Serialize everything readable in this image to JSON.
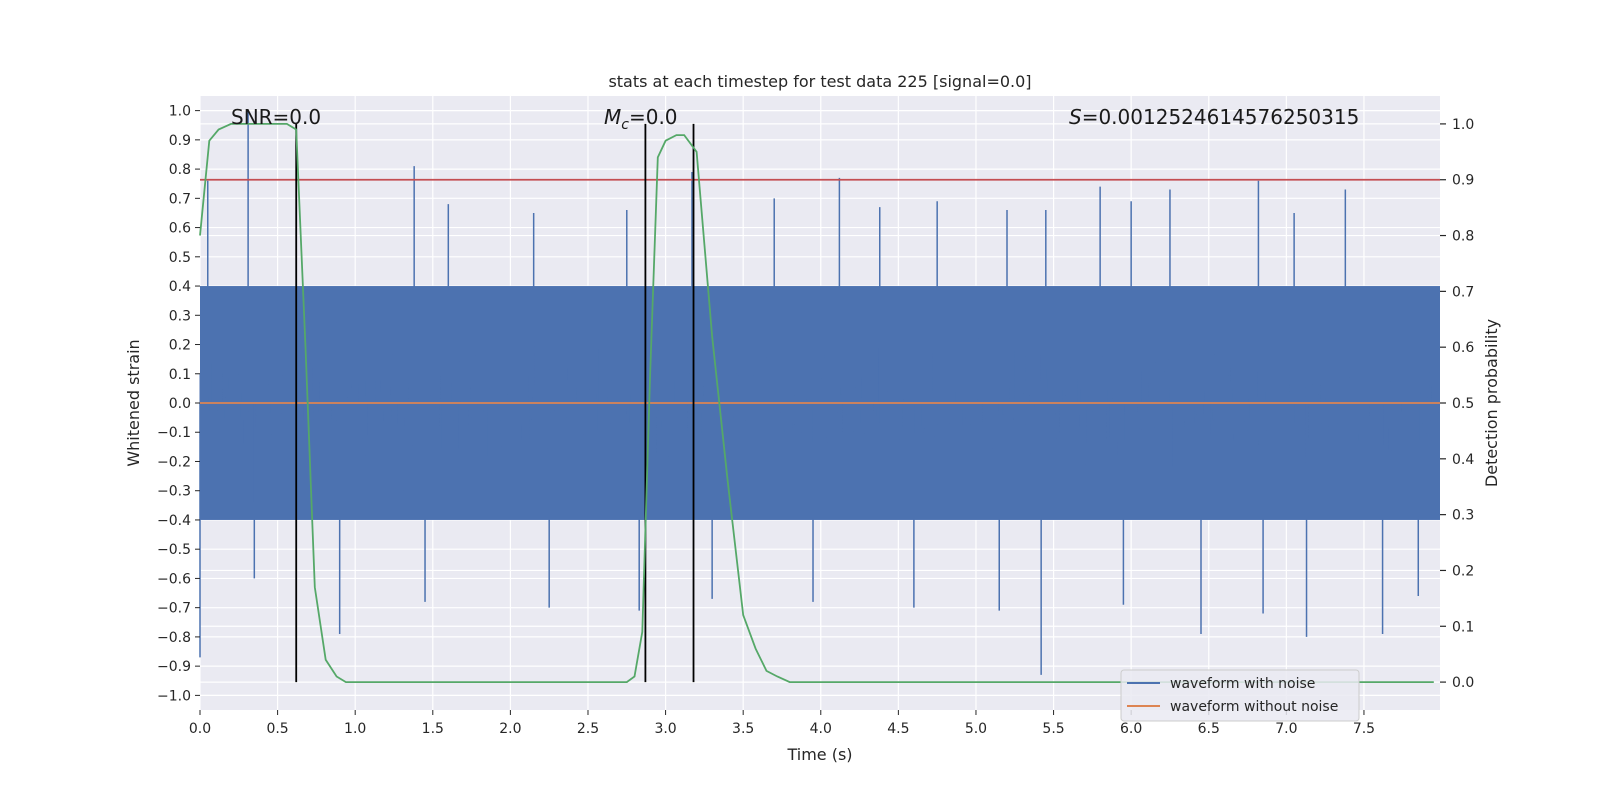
{
  "chart_data": {
    "type": "line",
    "title": "stats at each timestep for test data 225 [signal=0.0]",
    "xlabel": "Time (s)",
    "ylabel": "Whitened strain",
    "y2label": "Detection probability",
    "xlim": [
      0.0,
      7.99
    ],
    "ylim": [
      -1.05,
      1.05
    ],
    "y2lim": [
      -0.05,
      1.05
    ],
    "xticks": [
      "0.0",
      "0.5",
      "1.0",
      "1.5",
      "2.0",
      "2.5",
      "3.0",
      "3.5",
      "4.0",
      "4.5",
      "5.0",
      "5.5",
      "6.0",
      "6.5",
      "7.0",
      "7.5"
    ],
    "yticks": [
      "1.0",
      "0.9",
      "0.8",
      "0.7",
      "0.6",
      "0.5",
      "0.4",
      "0.3",
      "0.2",
      "0.1",
      "0.0",
      "−0.1",
      "−0.2",
      "−0.3",
      "−0.4",
      "−0.5",
      "−0.6",
      "−0.7",
      "−0.8",
      "−0.9",
      "−1.0"
    ],
    "y2ticks": [
      "1.0",
      "0.9",
      "0.8",
      "0.7",
      "0.6",
      "0.5",
      "0.4",
      "0.3",
      "0.2",
      "0.1",
      "0.0"
    ],
    "grid": true,
    "legend_position": "lower-right",
    "annotations": {
      "snr": "SNR=0.0",
      "mc_symbol": "M",
      "mc_sub": "c",
      "mc_value": "=0.0",
      "s_symbol": "S",
      "s_value": "=0.0012524614576250315"
    },
    "series": [
      {
        "name": "waveform with noise",
        "color": "#4c72b0",
        "description_only": false,
        "band_upper": 0.4,
        "band_lower": -0.4,
        "spikes_up": [
          [
            0.31,
            1.0
          ],
          [
            1.38,
            0.81
          ],
          [
            0.62,
            0.67
          ],
          [
            3.17,
            0.79
          ],
          [
            2.75,
            0.66
          ],
          [
            4.12,
            0.77
          ],
          [
            4.75,
            0.69
          ],
          [
            5.2,
            0.66
          ],
          [
            5.8,
            0.74
          ],
          [
            6.25,
            0.73
          ],
          [
            6.82,
            0.76
          ],
          [
            7.38,
            0.73
          ],
          [
            0.05,
            0.76
          ],
          [
            1.6,
            0.68
          ],
          [
            2.15,
            0.65
          ],
          [
            3.7,
            0.7
          ],
          [
            4.38,
            0.67
          ],
          [
            5.45,
            0.66
          ],
          [
            6.0,
            0.69
          ],
          [
            7.05,
            0.65
          ]
        ],
        "spikes_down": [
          [
            5.42,
            -0.93
          ],
          [
            0.0,
            -0.87
          ],
          [
            0.9,
            -0.79
          ],
          [
            2.83,
            -0.71
          ],
          [
            6.45,
            -0.79
          ],
          [
            7.13,
            -0.8
          ],
          [
            7.62,
            -0.79
          ],
          [
            0.35,
            -0.6
          ],
          [
            1.45,
            -0.68
          ],
          [
            2.25,
            -0.7
          ],
          [
            3.3,
            -0.67
          ],
          [
            3.95,
            -0.68
          ],
          [
            4.6,
            -0.7
          ],
          [
            5.15,
            -0.71
          ],
          [
            5.95,
            -0.69
          ],
          [
            6.85,
            -0.72
          ],
          [
            7.85,
            -0.66
          ]
        ]
      },
      {
        "name": "waveform without noise",
        "color": "#dd8452",
        "x": [
          0.0,
          7.99
        ],
        "values": [
          0.0,
          0.0
        ]
      },
      {
        "name": "detection probability",
        "color": "#55a868",
        "axis": "right",
        "x": [
          0.0,
          0.06,
          0.12,
          0.2,
          0.3,
          0.4,
          0.5,
          0.56,
          0.62,
          0.68,
          0.74,
          0.81,
          0.88,
          0.94,
          1.0,
          1.5,
          2.0,
          2.5,
          2.6,
          2.75,
          2.8,
          2.85,
          2.9,
          2.95,
          3.0,
          3.07,
          3.12,
          3.2,
          3.3,
          3.4,
          3.5,
          3.58,
          3.65,
          3.72,
          3.8,
          4.0,
          5.0,
          6.0,
          7.0,
          7.6,
          7.95
        ],
        "values": [
          0.8,
          0.97,
          0.99,
          1.0,
          1.0,
          1.0,
          1.0,
          1.0,
          0.99,
          0.6,
          0.17,
          0.04,
          0.01,
          0.0,
          0.0,
          0.0,
          0.0,
          0.0,
          0.0,
          0.0,
          0.01,
          0.09,
          0.55,
          0.94,
          0.97,
          0.98,
          0.98,
          0.95,
          0.62,
          0.36,
          0.12,
          0.06,
          0.02,
          0.01,
          0.0,
          0.0,
          0.0,
          0.0,
          0.0,
          0.0,
          0.0
        ]
      },
      {
        "name": "threshold",
        "color": "#c44e52",
        "axis": "right",
        "x": [
          0.0,
          7.99
        ],
        "values": [
          0.9,
          0.9
        ]
      }
    ],
    "vlines": [
      0.62,
      2.87,
      3.18
    ],
    "vline_color": "#000000"
  },
  "legend": {
    "items": [
      {
        "label": "waveform with noise",
        "color": "#4c72b0"
      },
      {
        "label": "waveform without noise",
        "color": "#dd8452"
      }
    ]
  },
  "colors": {
    "plot_bg": "#eaeaf2",
    "grid": "#ffffff",
    "text": "#262626"
  }
}
